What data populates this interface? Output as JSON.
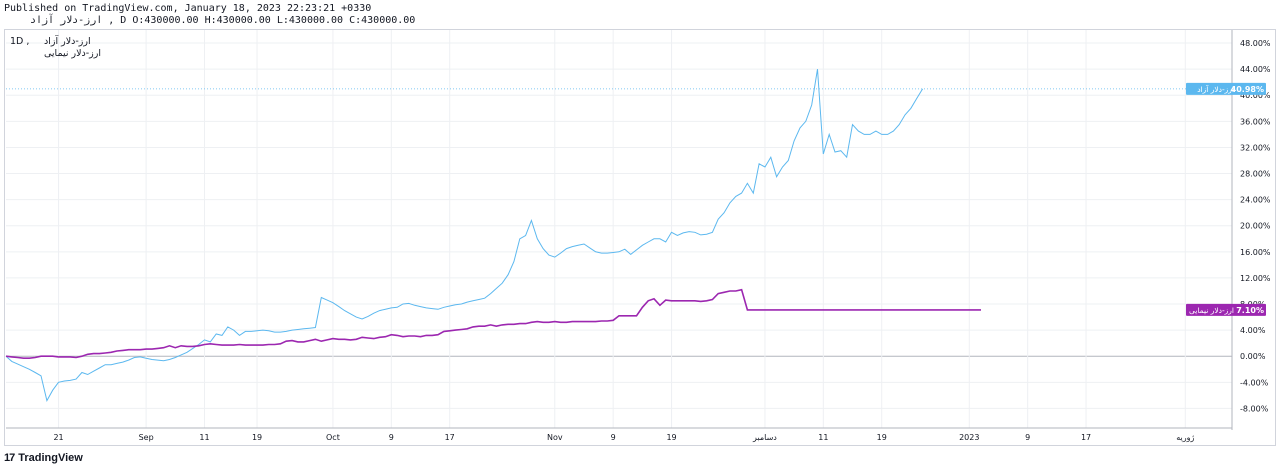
{
  "header": {
    "published": "Published on TradingView.com, January 18, 2023 22:23:21 +0330",
    "ohlc": "ارز-دلار آزاد , D O:430000.00 H:430000.00 L:430000.00 C:430000.00"
  },
  "legend": {
    "interval": "1D ,",
    "series1": "ارز-دلار آزاد",
    "series2": "ارز-دلار نیمایی"
  },
  "footer": {
    "brand": "TradingView",
    "logo": "17"
  },
  "colors": {
    "free": "#5cb8ef",
    "nima": "#9c27b0",
    "grid": "#eef0f3",
    "axis_text": "#131722"
  },
  "chart_data": {
    "type": "line",
    "ylim": [
      -11,
      50
    ],
    "y_ticks": [
      "48.00%",
      "44.00%",
      "40.00%",
      "36.00%",
      "32.00%",
      "28.00%",
      "24.00%",
      "20.00%",
      "16.00%",
      "12.00%",
      "8.00%",
      "4.00%",
      "0.00%",
      "-4.00%",
      "-8.00%"
    ],
    "y_tick_values": [
      48,
      44,
      40,
      36,
      32,
      28,
      24,
      20,
      16,
      12,
      8,
      4,
      0,
      -4,
      -8
    ],
    "x_ticks": [
      "21",
      "Sep",
      "11",
      "19",
      "Oct",
      "9",
      "17",
      "Nov",
      "9",
      "19",
      "دسامبر",
      "11",
      "19",
      "2023",
      "9",
      "17",
      "ژوریه"
    ],
    "x_tick_index": [
      9,
      24,
      34,
      43,
      56,
      66,
      76,
      94,
      104,
      114,
      130,
      140,
      150,
      165,
      175,
      185,
      202
    ],
    "x_range": [
      0,
      210
    ],
    "grid": true,
    "series": [
      {
        "name": "ارز-دلار آزاد",
        "color": "#5cb8ef",
        "last_label": "40.98%",
        "values": [
          0,
          -0.8,
          -1.2,
          -1.6,
          -2,
          -2.5,
          -3,
          -6.8,
          -5.2,
          -4,
          -3.8,
          -3.7,
          -3.5,
          -2.5,
          -2.8,
          -2.3,
          -1.8,
          -1.3,
          -1.3,
          -1.1,
          -0.9,
          -0.6,
          -0.2,
          -0.1,
          -0.3,
          -0.5,
          -0.6,
          -0.7,
          -0.5,
          -0.2,
          0.2,
          0.6,
          1.2,
          1.8,
          2.5,
          2.2,
          3.4,
          3.2,
          4.5,
          4,
          3.2,
          3.8,
          3.8,
          3.9,
          4,
          3.9,
          3.7,
          3.7,
          3.8,
          4,
          4.1,
          4.2,
          4.3,
          4.4,
          9,
          8.6,
          8.2,
          7.6,
          7,
          6.5,
          6,
          5.7,
          6.1,
          6.6,
          7,
          7.2,
          7.4,
          7.5,
          8,
          8.1,
          7.8,
          7.6,
          7.4,
          7.3,
          7.2,
          7.5,
          7.7,
          7.9,
          8,
          8.3,
          8.5,
          8.7,
          8.9,
          9.6,
          10.4,
          11.2,
          12.5,
          14.5,
          18,
          18.5,
          20.8,
          18,
          16.5,
          15.5,
          15.2,
          15.8,
          16.5,
          16.8,
          17,
          17.2,
          16.6,
          16,
          15.8,
          15.8,
          15.9,
          16,
          16.4,
          15.6,
          16.3,
          17,
          17.5,
          18,
          18,
          17.5,
          19,
          18.5,
          18.9,
          19.1,
          19,
          18.6,
          18.7,
          19,
          21,
          22,
          23.5,
          24.5,
          25,
          26.5,
          25,
          29.5,
          29,
          30.5,
          27.5,
          29,
          30,
          33,
          35,
          36,
          38.5,
          44,
          31,
          34,
          31.3,
          31.5,
          30.5,
          35.5,
          34.5,
          34,
          34,
          34.5,
          34,
          34,
          34.5,
          35.5,
          37,
          38,
          39.5,
          40.98
        ]
      },
      {
        "name": "ارز-دلار نیمایی",
        "color": "#9c27b0",
        "last_label": "7.10%",
        "values": [
          0,
          -0.1,
          -0.2,
          -0.3,
          -0.3,
          -0.2,
          0,
          0,
          0,
          -0.1,
          -0.1,
          -0.1,
          -0.2,
          0,
          0.3,
          0.4,
          0.4,
          0.5,
          0.6,
          0.8,
          0.9,
          1,
          1,
          1,
          1.1,
          1.1,
          1.2,
          1.3,
          1.6,
          1.3,
          1.6,
          1.5,
          1.5,
          1.6,
          1.8,
          1.9,
          1.8,
          1.7,
          1.7,
          1.7,
          1.8,
          1.7,
          1.7,
          1.7,
          1.7,
          1.8,
          1.8,
          1.9,
          2.3,
          2.4,
          2.2,
          2.2,
          2.4,
          2.6,
          2.3,
          2.5,
          2.7,
          2.6,
          2.6,
          2.5,
          2.6,
          2.9,
          2.8,
          2.7,
          2.9,
          3,
          3.3,
          3.2,
          3,
          3.1,
          3.1,
          3,
          3.2,
          3.2,
          3.3,
          3.8,
          3.9,
          4,
          4.1,
          4.2,
          4.5,
          4.6,
          4.6,
          4.8,
          4.6,
          4.8,
          4.9,
          4.9,
          5,
          5,
          5.2,
          5.3,
          5.2,
          5.2,
          5.3,
          5.2,
          5.2,
          5.3,
          5.3,
          5.3,
          5.3,
          5.3,
          5.4,
          5.4,
          5.5,
          6.2,
          6.2,
          6.2,
          6.2,
          7.5,
          8.5,
          8.8,
          7.8,
          8.6,
          8.5,
          8.5,
          8.5,
          8.5,
          8.5,
          8.4,
          8.5,
          8.7,
          9.6,
          9.8,
          10,
          10,
          10.2,
          7.1,
          7.1,
          7.1,
          7.1,
          7.1,
          7.1,
          7.1,
          7.1,
          7.1,
          7.1,
          7.1,
          7.1,
          7.1,
          7.1,
          7.1,
          7.1,
          7.1,
          7.1,
          7.1,
          7.1,
          7.1,
          7.1,
          7.1,
          7.1,
          7.1,
          7.1,
          7.1,
          7.1,
          7.1,
          7.1,
          7.1,
          7.1,
          7.1,
          7.1,
          7.1,
          7.1,
          7.1,
          7.1,
          7.1,
          7.1,
          7.1
        ]
      }
    ]
  }
}
